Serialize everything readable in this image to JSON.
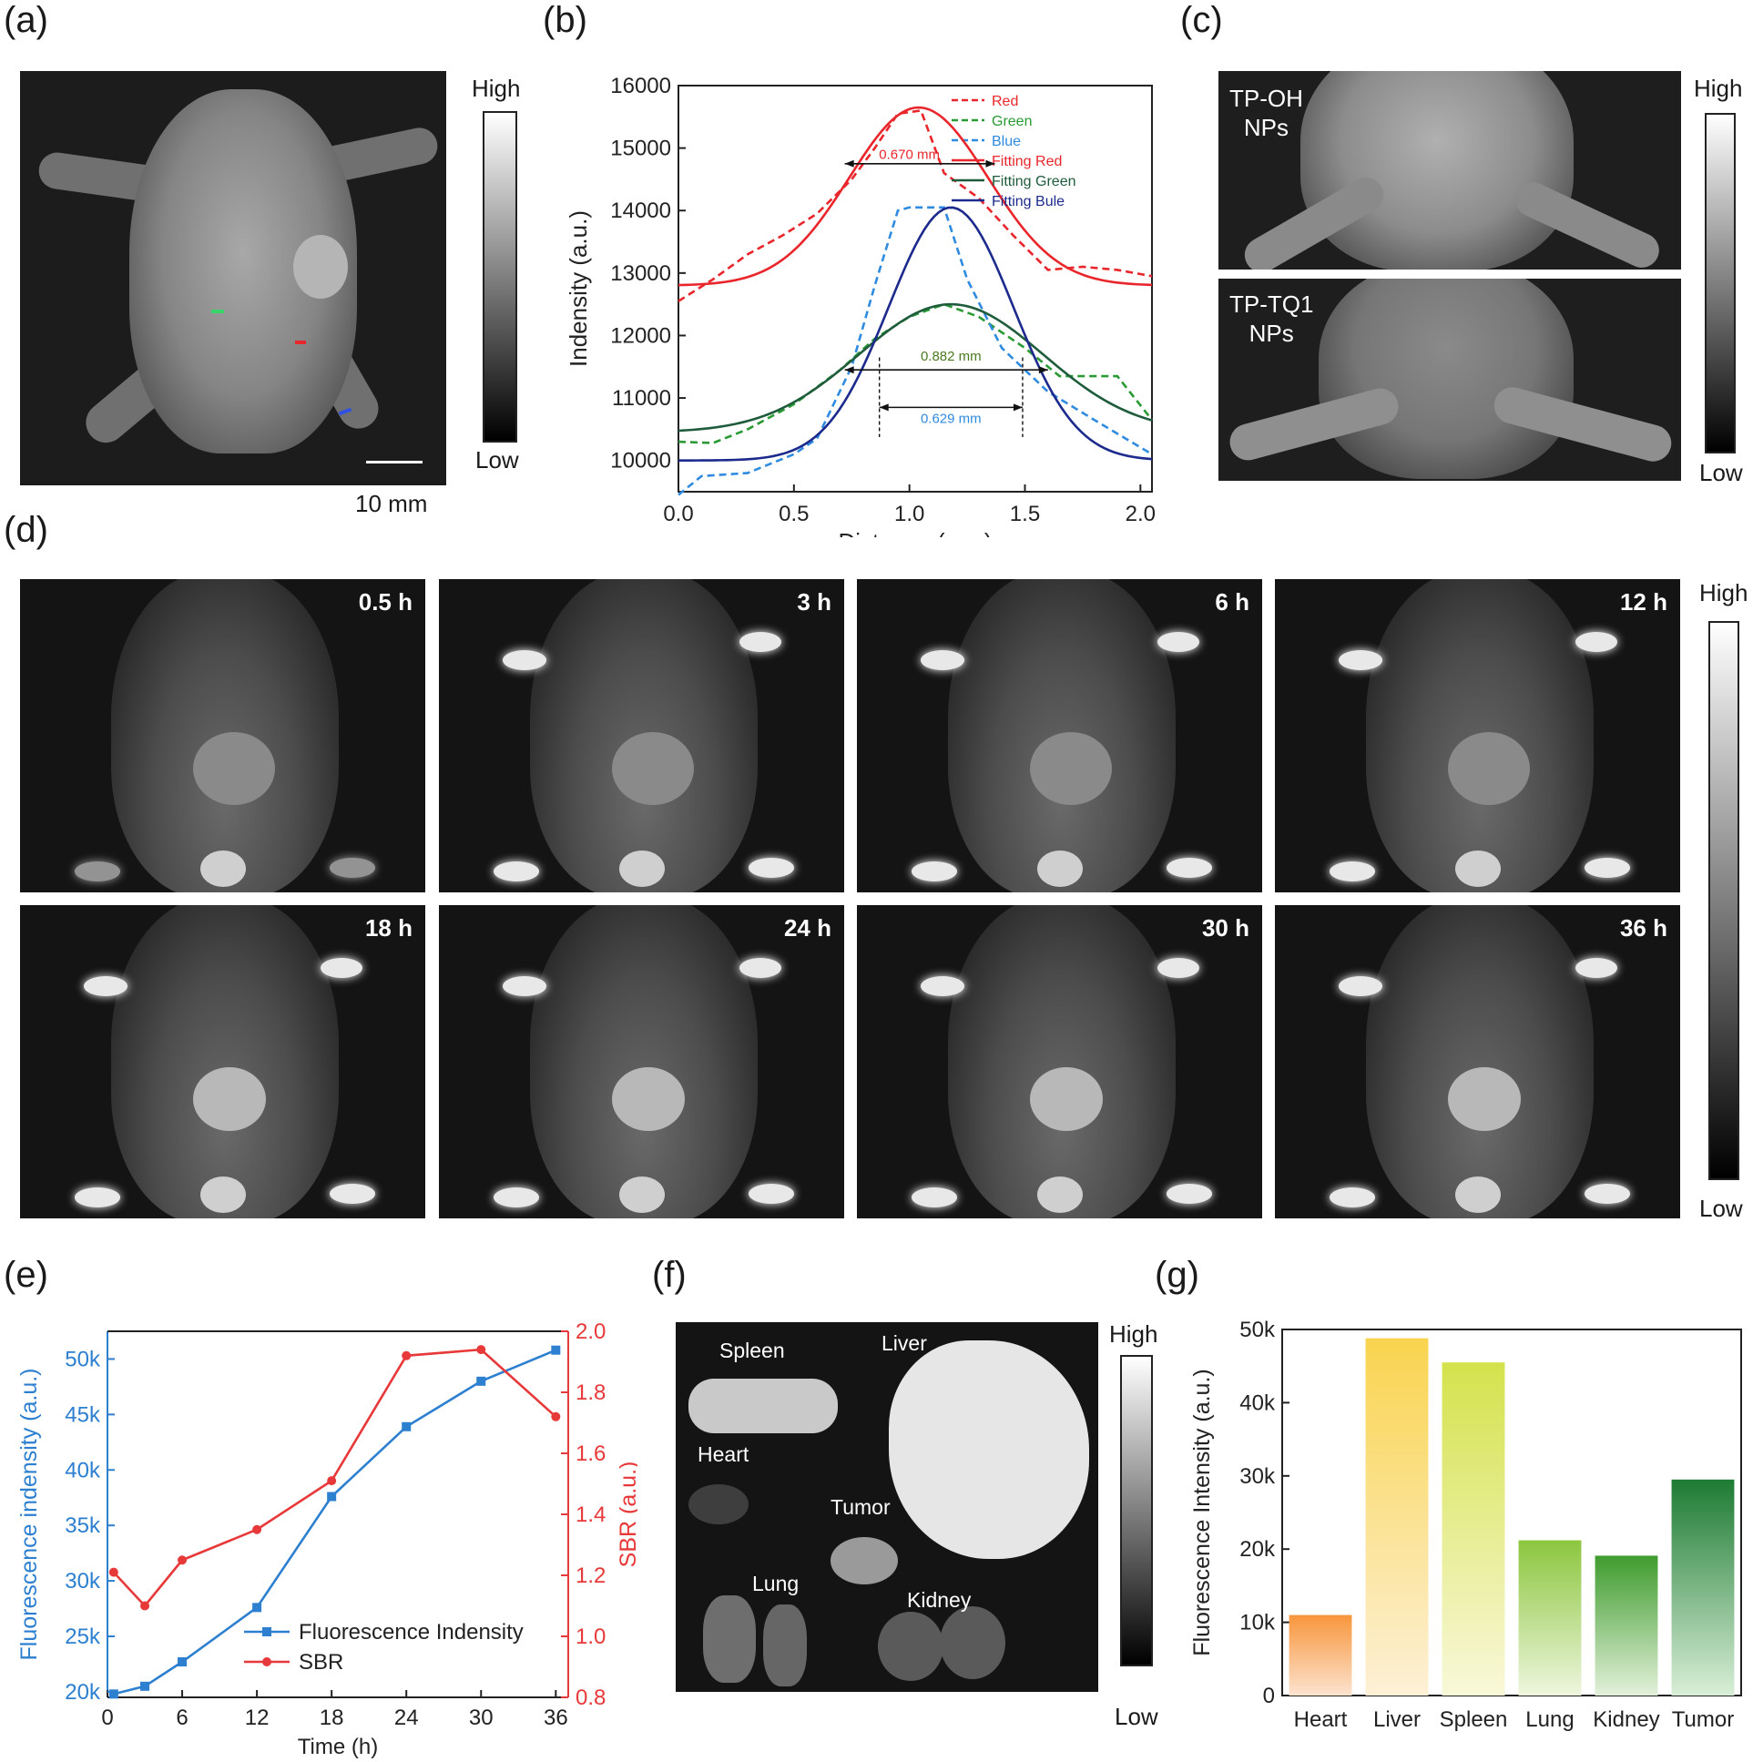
{
  "panel_labels": {
    "a": "(a)",
    "b": "(b)",
    "c": "(c)",
    "d": "(d)",
    "e": "(e)",
    "f": "(f)",
    "g": "(g)"
  },
  "panel_a": {
    "scale_label": "10 mm",
    "colorbar_high": "High",
    "colorbar_low": "Low"
  },
  "panel_c": {
    "top_label_line1": "TP-OH",
    "top_label_line2": "NPs",
    "bottom_label_line1": "TP-TQ1",
    "bottom_label_line2": "NPs",
    "colorbar_high": "High",
    "colorbar_low": "Low"
  },
  "panel_d": {
    "time_labels": [
      "0.5 h",
      "3 h",
      "6 h",
      "12 h",
      "18 h",
      "24 h",
      "30 h",
      "36 h"
    ],
    "colorbar_high": "High",
    "colorbar_low": "Low"
  },
  "panel_f": {
    "organ_labels": [
      "Spleen",
      "Liver",
      "Heart",
      "Tumor",
      "Lung",
      "Kidney"
    ],
    "colorbar_high": "High",
    "colorbar_low": "Low"
  },
  "chart_data": [
    {
      "panel": "b",
      "type": "line",
      "xlabel": "Distance (mm)",
      "ylabel": "Indensity (a.u.)",
      "xlim": [
        0.0,
        2.05
      ],
      "ylim": [
        9500,
        16000
      ],
      "xticks": [
        "0.0",
        "0.5",
        "1.0",
        "1.5",
        "2.0"
      ],
      "yticks": [
        "10000",
        "11000",
        "12000",
        "13000",
        "14000",
        "15000",
        "16000"
      ],
      "legend_position": "top-right",
      "series": [
        {
          "name": "Red",
          "style": "dashed",
          "color": "#e8262b",
          "x": [
            0.0,
            0.15,
            0.3,
            0.45,
            0.6,
            0.75,
            0.85,
            0.95,
            1.05,
            1.15,
            1.3,
            1.45,
            1.6,
            1.75,
            1.9,
            2.05
          ],
          "y": [
            12550,
            12900,
            13300,
            13600,
            13950,
            14500,
            15000,
            15550,
            15600,
            14600,
            14200,
            13600,
            13050,
            13100,
            13050,
            12950
          ]
        },
        {
          "name": "Green",
          "style": "dashed",
          "color": "#2a9a35",
          "x": [
            0.0,
            0.15,
            0.3,
            0.5,
            0.7,
            0.85,
            1.0,
            1.15,
            1.3,
            1.5,
            1.65,
            1.75,
            1.9,
            2.05
          ],
          "y": [
            10300,
            10280,
            10500,
            10900,
            11450,
            11950,
            12300,
            12500,
            12300,
            11800,
            11350,
            11350,
            11350,
            10650
          ]
        },
        {
          "name": "Blue",
          "style": "dashed",
          "color": "#2f8be0",
          "x": [
            0.0,
            0.1,
            0.3,
            0.5,
            0.6,
            0.75,
            0.85,
            0.95,
            1.0,
            1.15,
            1.25,
            1.4,
            1.6,
            1.8,
            2.05
          ],
          "y": [
            9450,
            9750,
            9800,
            10100,
            10350,
            11500,
            12800,
            14000,
            14050,
            14050,
            12900,
            11800,
            11100,
            10650,
            10100
          ]
        },
        {
          "name": "Fitting Red",
          "style": "solid",
          "color": "#e8262b",
          "fit": {
            "base": 12800,
            "amp": 2850,
            "center": 1.04,
            "sigma": 0.3
          }
        },
        {
          "name": "Fitting Green",
          "style": "solid",
          "color": "#1f5c3c",
          "fit": {
            "base": 10450,
            "amp": 2050,
            "center": 1.18,
            "sigma": 0.4
          }
        },
        {
          "name": "Fitting Bule",
          "style": "solid",
          "color": "#1b2a8c",
          "fit": {
            "base": 10000,
            "amp": 4050,
            "center": 1.18,
            "sigma": 0.27
          }
        }
      ],
      "annotations": [
        {
          "text": "0.670 mm",
          "color": "#e8262b"
        },
        {
          "text": "0.882 mm",
          "color": "#4a7a1f"
        },
        {
          "text": "0.629 mm",
          "color": "#2f8be0"
        }
      ]
    },
    {
      "panel": "e",
      "type": "line",
      "xlabel": "Time (h)",
      "ylabel": "Fluorescence indensity (a.u.)",
      "y2label": "SBR (a.u.)",
      "xlim": [
        0,
        37
      ],
      "ylim": [
        19500,
        52500
      ],
      "y2lim": [
        0.8,
        2.0
      ],
      "xticks": [
        "0",
        "6",
        "12",
        "18",
        "24",
        "30",
        "36"
      ],
      "yticks": [
        "20k",
        "25k",
        "30k",
        "35k",
        "40k",
        "45k",
        "50k"
      ],
      "y2ticks": [
        "0.8",
        "1.0",
        "1.2",
        "1.4",
        "1.6",
        "1.8",
        "2.0"
      ],
      "legend_position": "bottom-right",
      "x": [
        0.5,
        3,
        6,
        12,
        18,
        24,
        30,
        36
      ],
      "series": [
        {
          "name": "Fluorescence Indensity",
          "axis": "left",
          "color": "#2d7fd0",
          "marker": "square",
          "values": [
            19800,
            20500,
            22700,
            27600,
            37600,
            43900,
            48000,
            50800
          ]
        },
        {
          "name": "SBR",
          "axis": "right",
          "color": "#e8393a",
          "marker": "circle",
          "values": [
            1.21,
            1.1,
            1.25,
            1.35,
            1.51,
            1.92,
            1.94,
            1.72
          ]
        }
      ]
    },
    {
      "panel": "g",
      "type": "bar",
      "xlabel": "",
      "ylabel": "Fluorescence Intensity (a.u.)",
      "ylim": [
        0,
        50000
      ],
      "yticks": [
        "0",
        "10k",
        "20k",
        "30k",
        "40k",
        "50k"
      ],
      "categories": [
        "Heart",
        "Liver",
        "Spleen",
        "Lung",
        "Kidney",
        "Tumor"
      ],
      "values": [
        11000,
        48800,
        45500,
        21200,
        19100,
        29500
      ],
      "colors_top": [
        "#f7963c",
        "#f9d44f",
        "#d4e24c",
        "#8cc63e",
        "#3f9c2e",
        "#1d7b33"
      ],
      "colors_bottom": [
        "#fde3cf",
        "#fdf0d6",
        "#f9f8d9",
        "#eef6de",
        "#e3f1da",
        "#d9efd7"
      ]
    }
  ]
}
